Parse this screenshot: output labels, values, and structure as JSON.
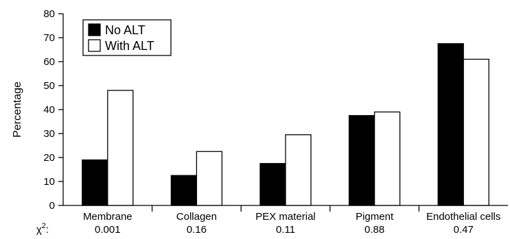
{
  "chart_data": {
    "type": "bar",
    "ylabel": "Percentage",
    "ylim": [
      0,
      80
    ],
    "yticks": [
      0,
      10,
      20,
      30,
      40,
      50,
      60,
      70,
      80
    ],
    "categories": [
      "Membrane",
      "Collagen",
      "PEX material",
      "Pigment",
      "Endothelial cells"
    ],
    "series": [
      {
        "name": "No ALT",
        "values": [
          19,
          12.5,
          17.5,
          37.5,
          67.5
        ],
        "color": "#000000"
      },
      {
        "name": "With ALT",
        "values": [
          48,
          22.5,
          29.5,
          39,
          61
        ],
        "color": "#ffffff"
      }
    ],
    "chi_label": "χ",
    "chi_sup": "2",
    "chi_suffix": ":",
    "chi_values": [
      "0.001",
      "0.16",
      "0.11",
      "0.88",
      "0.47"
    ],
    "legend_position": "top-left",
    "grid": false
  }
}
